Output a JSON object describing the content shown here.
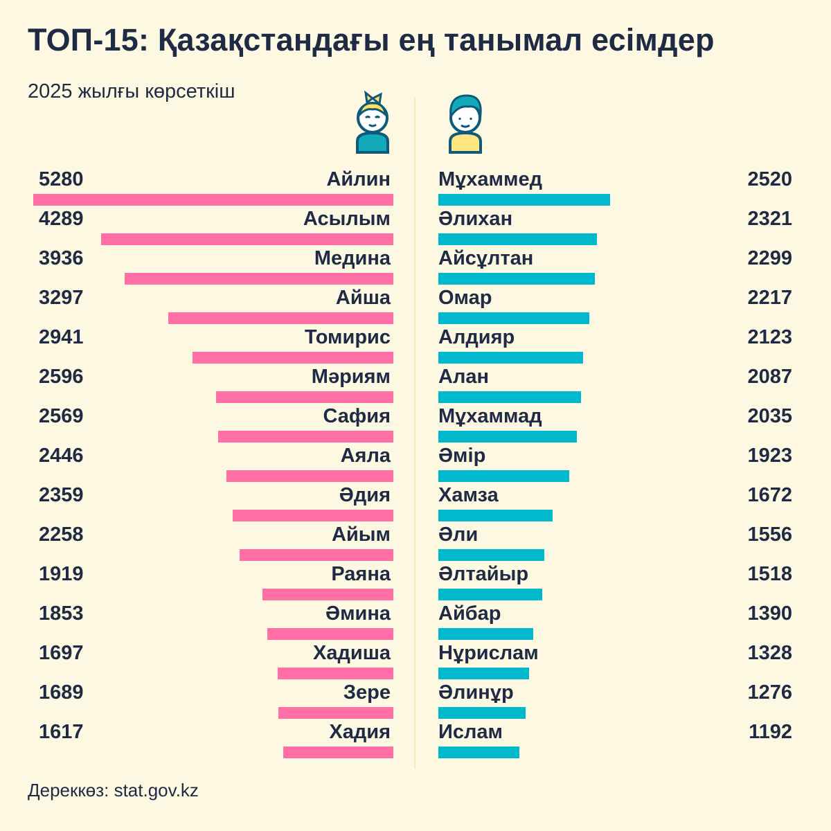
{
  "title": "ТОП-15: Қазақстандағы ең танымал есімдер",
  "subtitle": "2025 жылғы көрсеткіш",
  "source": "Дереккөз: stat.gov.kz",
  "colors": {
    "girls": "#ff6fa5",
    "boys": "#00b9cc",
    "background": "#fdf8e2",
    "text": "#1f2a44"
  },
  "icons": {
    "girls": "girl-icon",
    "boys": "boy-icon"
  },
  "chart_data": [
    {
      "type": "bar",
      "title": "Girls",
      "orientation": "horizontal",
      "categories": [
        "Айлин",
        "Асылым",
        "Медина",
        "Айша",
        "Томирис",
        "Мәриям",
        "Сафия",
        "Аяла",
        "Әдия",
        "Айым",
        "Раяна",
        "Әмина",
        "Хадиша",
        "Зере",
        "Хадия"
      ],
      "values": [
        5280,
        4289,
        3936,
        3297,
        2941,
        2596,
        2569,
        2446,
        2359,
        2258,
        1919,
        1853,
        1697,
        1689,
        1617
      ],
      "xlim": [
        0,
        5280
      ]
    },
    {
      "type": "bar",
      "title": "Boys",
      "orientation": "horizontal",
      "categories": [
        "Мұхаммед",
        "Әлихан",
        "Айсұлтан",
        "Омар",
        "Алдияр",
        "Алан",
        "Мұхаммад",
        "Әмір",
        "Хамза",
        "Әли",
        "Әлтайыр",
        "Айбар",
        "Нұрислам",
        "Әлинұр",
        "Ислам"
      ],
      "values": [
        2520,
        2321,
        2299,
        2217,
        2123,
        2087,
        2035,
        1923,
        1672,
        1556,
        1518,
        1390,
        1328,
        1276,
        1192
      ],
      "xlim": [
        0,
        5280
      ]
    }
  ]
}
